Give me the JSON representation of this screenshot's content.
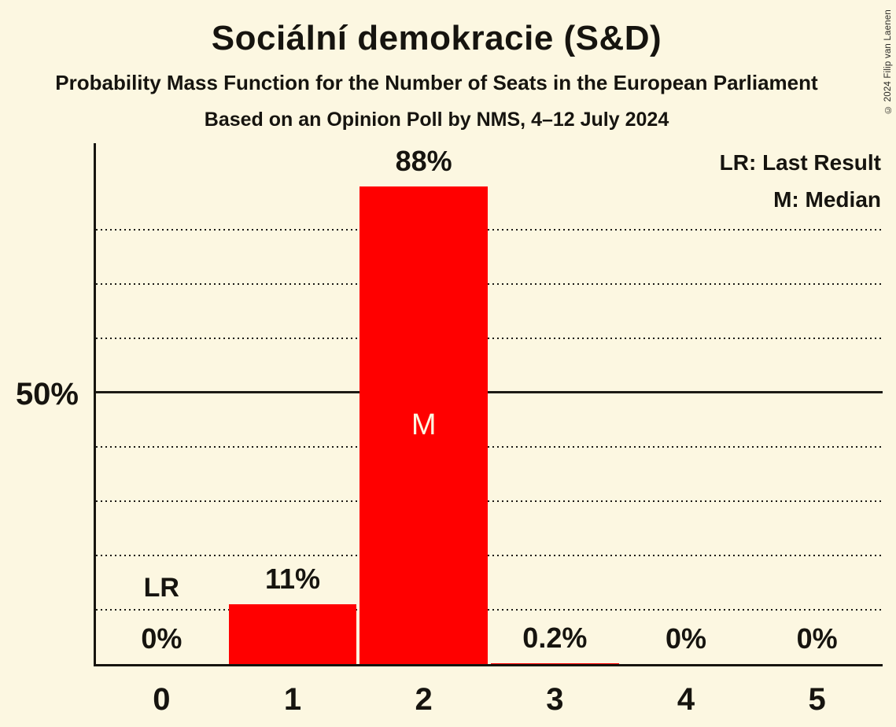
{
  "title": "Sociální demokracie (S&D)",
  "subtitle1": "Probability Mass Function for the Number of Seats in the European Parliament",
  "subtitle2": "Based on an Opinion Poll by NMS, 4–12 July 2024",
  "copyright": "© 2024 Filip van Laenen",
  "legend": {
    "lr": "LR: Last Result",
    "m": "M: Median"
  },
  "y_axis": {
    "tick_label": "50%",
    "tick_value": 50
  },
  "colors": {
    "background": "#FCF7E1",
    "bar": "#FF0000",
    "text": "#16140F",
    "median_text": "#FCF7E1"
  },
  "chart_data": {
    "type": "bar",
    "title": "Sociální demokracie (S&D)",
    "categories": [
      "0",
      "1",
      "2",
      "3",
      "4",
      "5"
    ],
    "values": [
      0,
      11,
      88,
      0.2,
      0,
      0
    ],
    "value_labels": [
      "0%",
      "11%",
      "88%",
      "0.2%",
      "0%",
      "0%"
    ],
    "ylim": [
      0,
      96.5
    ],
    "gridlines_pct": [
      10,
      20,
      30,
      40,
      50,
      60,
      70,
      80
    ],
    "solid_gridline_pct": 50,
    "grid_style": "dotted horizontal",
    "legend_position": "top-right",
    "bar_color": "#FF0000",
    "annotations": [
      {
        "kind": "last_result",
        "label": "LR",
        "category": "0"
      },
      {
        "kind": "median",
        "label": "M",
        "category": "2"
      }
    ]
  }
}
